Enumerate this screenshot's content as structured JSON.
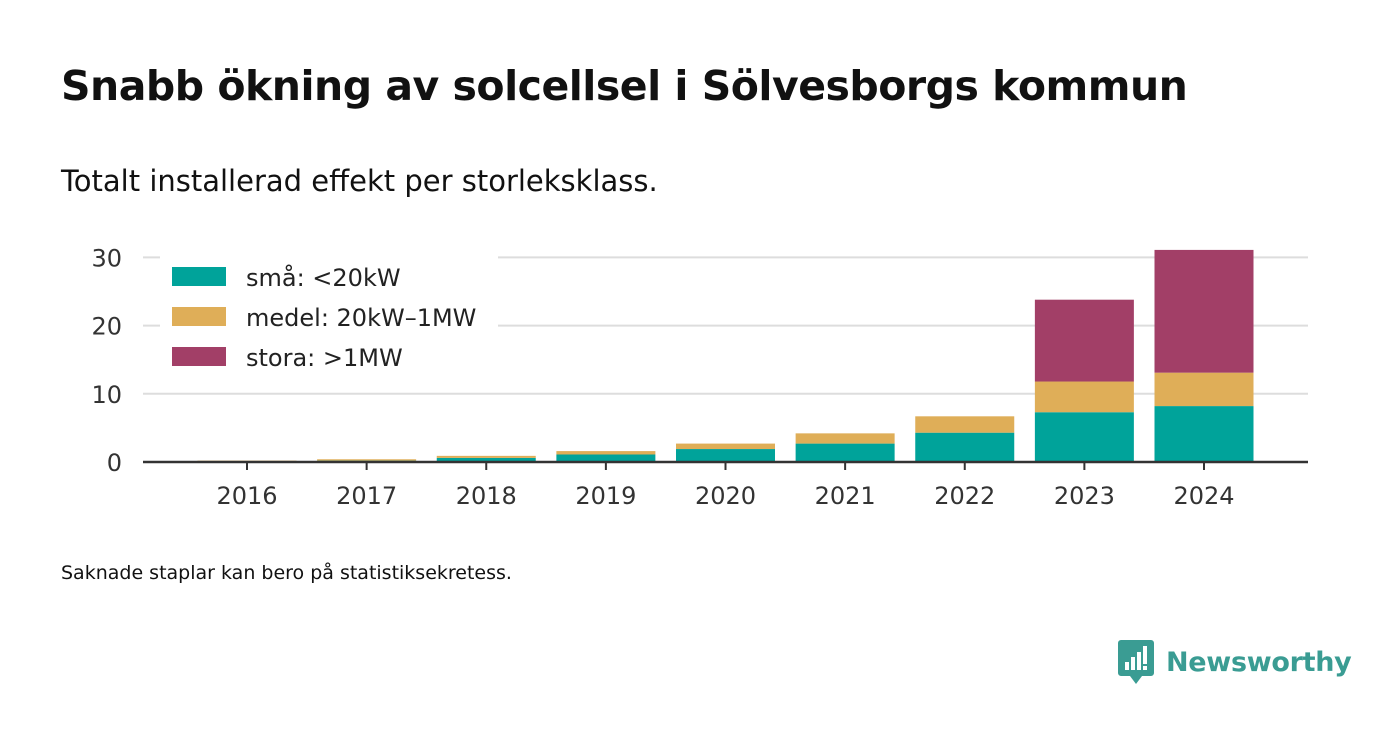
{
  "title": "Snabb ökning av solcellsel i Sölvesborgs kommun",
  "subtitle": "Totalt installerad effekt per storleksklass.",
  "footnote": "Saknade staplar kan bero på statistiksekretess.",
  "brand": {
    "name": "Newsworthy",
    "color": "#3a9c93",
    "logo_icon": "bar-chart-speech-bubble-icon"
  },
  "colors": {
    "gridline": "#dddddd",
    "axis": "#333333",
    "tick_text": "#333333"
  },
  "chart_data": {
    "type": "bar",
    "stacked": true,
    "categories": [
      "2016",
      "2017",
      "2018",
      "2019",
      "2020",
      "2021",
      "2022",
      "2023",
      "2024"
    ],
    "series": [
      {
        "name": "små: <20kW",
        "color": "#00a39a",
        "values": [
          0.1,
          0.2,
          0.6,
          1.1,
          1.9,
          2.7,
          4.3,
          7.3,
          8.2
        ]
      },
      {
        "name": "medel: 20kW–1MW",
        "color": "#dfae58",
        "values": [
          0.1,
          0.2,
          0.3,
          0.5,
          0.8,
          1.5,
          2.4,
          4.5,
          4.9
        ]
      },
      {
        "name": "stora: >1MW",
        "color": "#a23f67",
        "values": [
          0,
          0,
          0,
          0,
          0,
          0,
          0,
          12.0,
          18.0
        ]
      }
    ],
    "yticks": [
      0,
      10,
      20,
      30
    ],
    "ylim": [
      0,
      30.5
    ],
    "grid": true,
    "legend_position": "top-left",
    "xlabel": "",
    "ylabel": ""
  }
}
